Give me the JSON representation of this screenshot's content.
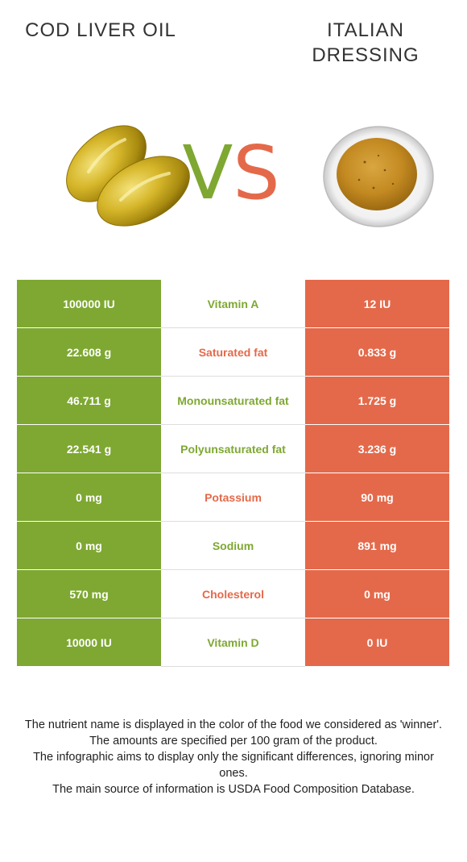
{
  "header": {
    "left_title": "COD LIVER OIL",
    "right_title": "ITALIAN DRESSING",
    "vs_v": "V",
    "vs_s": "S"
  },
  "colors": {
    "left_food": "#7ea832",
    "right_food": "#e4694a"
  },
  "images": {
    "left": "cod-liver-oil-capsules",
    "right": "italian-dressing-bowl"
  },
  "rows": [
    {
      "left": "100000 IU",
      "nutrient": "Vitamin A",
      "right": "12 IU",
      "winner": "left"
    },
    {
      "left": "22.608 g",
      "nutrient": "Saturated fat",
      "right": "0.833 g",
      "winner": "right"
    },
    {
      "left": "46.711 g",
      "nutrient": "Monounsaturated fat",
      "right": "1.725 g",
      "winner": "left"
    },
    {
      "left": "22.541 g",
      "nutrient": "Polyunsaturated fat",
      "right": "3.236 g",
      "winner": "left"
    },
    {
      "left": "0 mg",
      "nutrient": "Potassium",
      "right": "90 mg",
      "winner": "right"
    },
    {
      "left": "0 mg",
      "nutrient": "Sodium",
      "right": "891 mg",
      "winner": "left"
    },
    {
      "left": "570 mg",
      "nutrient": "Cholesterol",
      "right": "0 mg",
      "winner": "right"
    },
    {
      "left": "10000 IU",
      "nutrient": "Vitamin D",
      "right": "0 IU",
      "winner": "left"
    }
  ],
  "footnote": [
    "The nutrient name is displayed in the color of the food we considered as 'winner'.",
    "The amounts are specified per 100 gram of the product.",
    "The infographic aims to display only the significant differences, ignoring minor ones.",
    "The main source of information is USDA Food Composition Database."
  ]
}
